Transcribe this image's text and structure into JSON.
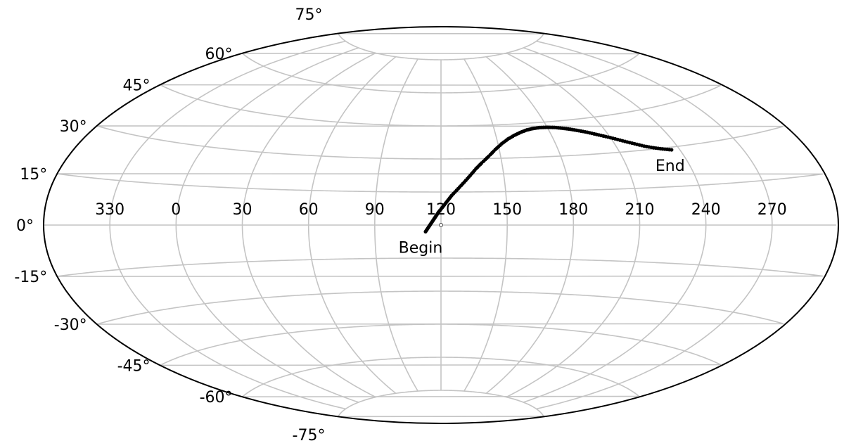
{
  "chart_data": {
    "type": "scatter",
    "projection": "aitoff",
    "title": "",
    "xlabel": "",
    "ylabel": "",
    "grid": true,
    "center_longitude": 120,
    "x_tick_labels": [
      "330",
      "0",
      "30",
      "60",
      "90",
      "120",
      "150",
      "180",
      "210",
      "240",
      "270"
    ],
    "x_tick_lons": [
      -30,
      0,
      30,
      60,
      90,
      120,
      150,
      180,
      210,
      240,
      270
    ],
    "y_tick_labels": [
      "75°",
      "60°",
      "45°",
      "30°",
      "15°",
      "0°",
      "-15°",
      "-30°",
      "-45°",
      "-60°",
      "-75°"
    ],
    "y_tick_lats": [
      75,
      60,
      45,
      30,
      15,
      0,
      -15,
      -30,
      -45,
      -60,
      -75
    ],
    "annotations": [
      {
        "text": "Begin",
        "lon": 113,
        "lat": -3
      },
      {
        "text": "End",
        "lon": 236,
        "lat": 29
      }
    ],
    "series": [
      {
        "color": "#000000",
        "points": [
          [
            113,
            -3
          ],
          [
            114,
            -1.5
          ],
          [
            115,
            0
          ],
          [
            116,
            1.5
          ],
          [
            117,
            3
          ],
          [
            118,
            4.5
          ],
          [
            119,
            6
          ],
          [
            121,
            8.5
          ],
          [
            123,
            11
          ],
          [
            125,
            13.5
          ],
          [
            128,
            16.5
          ],
          [
            131,
            19.5
          ],
          [
            134,
            22.5
          ],
          [
            137,
            25.5
          ],
          [
            140,
            28
          ],
          [
            144,
            31
          ],
          [
            148,
            34
          ],
          [
            152,
            36.5
          ],
          [
            156,
            38.5
          ],
          [
            160,
            40
          ],
          [
            164,
            41.2
          ],
          [
            168,
            42.1
          ],
          [
            172,
            42.6
          ],
          [
            176,
            42.8
          ],
          [
            180,
            42.7
          ],
          [
            184,
            42.4
          ],
          [
            188,
            41.8
          ],
          [
            192,
            41.1
          ],
          [
            196,
            40.2
          ],
          [
            200,
            39.2
          ],
          [
            204,
            38
          ],
          [
            208,
            36.8
          ],
          [
            212,
            35.5
          ],
          [
            216,
            34.1
          ],
          [
            220,
            32.8
          ],
          [
            224,
            31.5
          ],
          [
            228,
            30.5
          ],
          [
            232,
            29.7
          ],
          [
            236,
            29
          ]
        ]
      }
    ]
  }
}
